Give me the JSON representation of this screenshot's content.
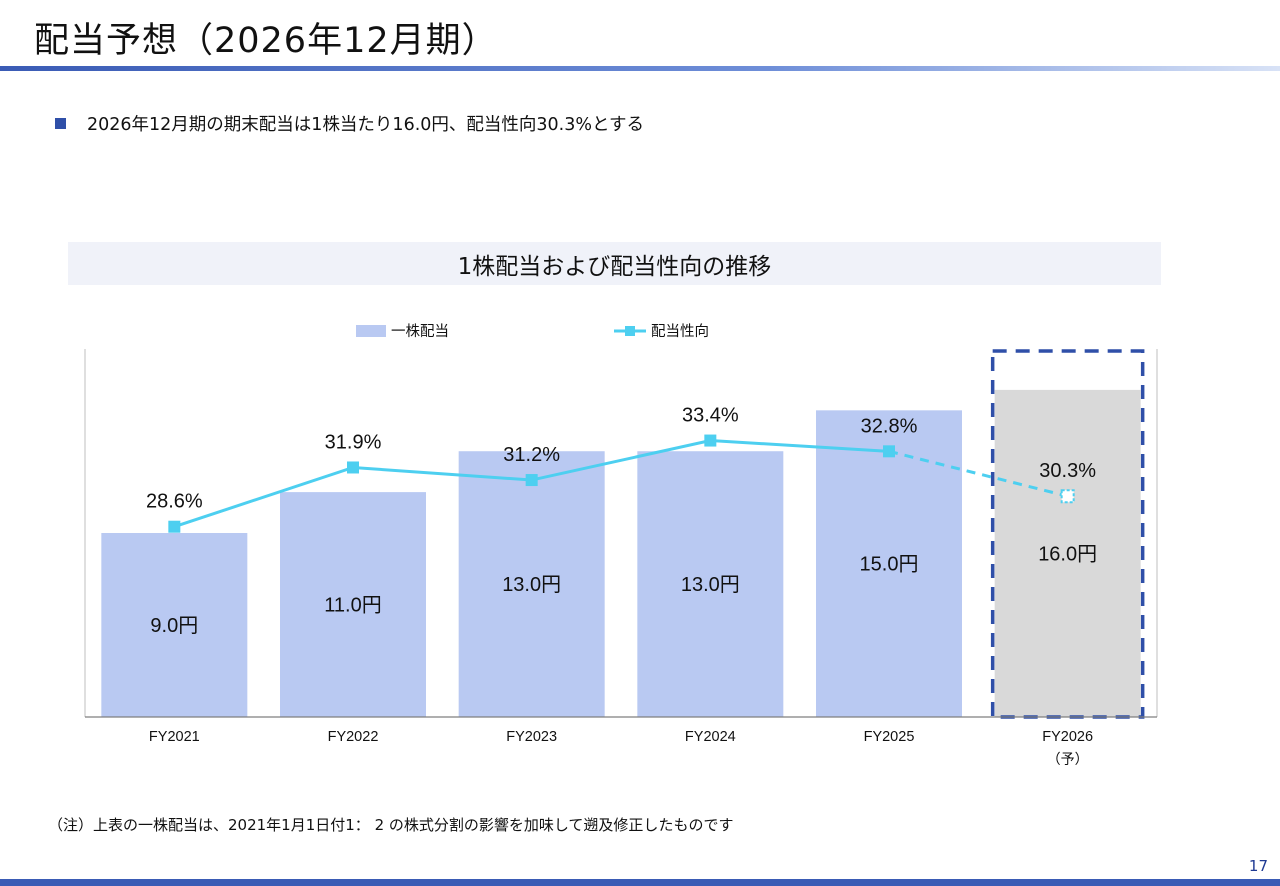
{
  "page": {
    "title": "配当予想（2026年12月期）",
    "bullet": "2026年12月期の期末配当は1株当たり16.0円、配当性向30.3%とする",
    "footnote": "（注）上表の一株配当は、2021年1月1日付1： 2 の株式分割の影響を加味して遡及修正したものです",
    "page_number": "17"
  },
  "chart_data": {
    "type": "bar+line",
    "title": "1株配当および配当性向の推移",
    "categories": [
      "FY2021",
      "FY2022",
      "FY2023",
      "FY2024",
      "FY2025",
      "FY2026"
    ],
    "category_sublabels": [
      "",
      "",
      "",
      "",
      "",
      "（予）"
    ],
    "series": [
      {
        "name": "一株配当",
        "type": "bar",
        "values": [
          9.0,
          11.0,
          13.0,
          13.0,
          15.0,
          16.0
        ],
        "labels": [
          "9.0円",
          "11.0円",
          "13.0円",
          "13.0円",
          "15.0円",
          "16.0円"
        ],
        "color": "#b9c9f2",
        "forecast_color": "#d9d9d9"
      },
      {
        "name": "配当性向",
        "type": "line",
        "values": [
          28.6,
          31.9,
          31.2,
          33.4,
          32.8,
          30.3
        ],
        "labels": [
          "28.6%",
          "31.9%",
          "31.2%",
          "33.4%",
          "32.8%",
          "30.3%"
        ],
        "color": "#4dcff0"
      }
    ],
    "forecast_category": "FY2026",
    "bar_axis_max": 18.0,
    "line_axis_range": [
      18.0,
      38.5
    ],
    "legend_position": "top-center",
    "forecast_highlight_color": "#2f4fa8"
  }
}
